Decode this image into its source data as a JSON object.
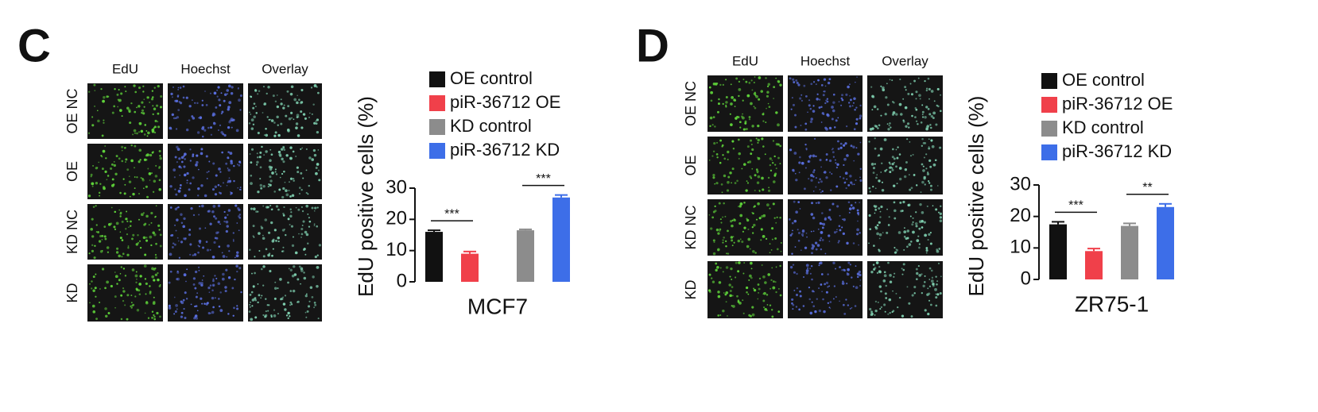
{
  "panels": [
    {
      "letter": "C",
      "columns": [
        "EdU",
        "Hoechst",
        "Overlay"
      ],
      "rows": [
        "OE NC",
        "OE",
        "KD NC",
        "KD"
      ]
    },
    {
      "letter": "D",
      "columns": [
        "EdU",
        "Hoechst",
        "Overlay"
      ],
      "rows": [
        "OE NC",
        "OE",
        "KD NC",
        "KD"
      ]
    }
  ],
  "chart_data": [
    {
      "type": "bar",
      "x_label": "MCF7",
      "y_label": "EdU positive cells (%)",
      "categories": [
        null
      ],
      "series": [
        {
          "name": "OE control",
          "color": "#111111",
          "values": [
            16
          ],
          "errors": [
            0.5
          ]
        },
        {
          "name": "piR-36712 OE",
          "color": "#f0404a",
          "values": [
            9
          ],
          "errors": [
            0.7
          ]
        },
        {
          "name": "KD control",
          "color": "#8c8c8c",
          "values": [
            16.5
          ],
          "errors": [
            0.3
          ]
        },
        {
          "name": "piR-36712 KD",
          "color": "#3d6ee8",
          "values": [
            27
          ],
          "errors": [
            0.8
          ]
        }
      ],
      "annotations": [
        "***",
        "***"
      ],
      "ylim": [
        0,
        30
      ],
      "yticks": [
        0,
        10,
        20,
        30
      ],
      "legend": "top"
    },
    {
      "type": "bar",
      "x_label": "ZR75-1",
      "y_label": "EdU positive cells (%)",
      "categories": [
        null
      ],
      "series": [
        {
          "name": "OE control",
          "color": "#111111",
          "values": [
            17.5
          ],
          "errors": [
            0.8
          ]
        },
        {
          "name": "piR-36712 OE",
          "color": "#f0404a",
          "values": [
            9
          ],
          "errors": [
            0.8
          ]
        },
        {
          "name": "KD control",
          "color": "#8c8c8c",
          "values": [
            17
          ],
          "errors": [
            0.8
          ]
        },
        {
          "name": "piR-36712 KD",
          "color": "#3d6ee8",
          "values": [
            23
          ],
          "errors": [
            1
          ]
        }
      ],
      "annotations": [
        "***",
        "**"
      ],
      "ylim": [
        0,
        30
      ],
      "yticks": [
        0,
        10,
        20,
        30
      ],
      "legend": "top"
    }
  ]
}
